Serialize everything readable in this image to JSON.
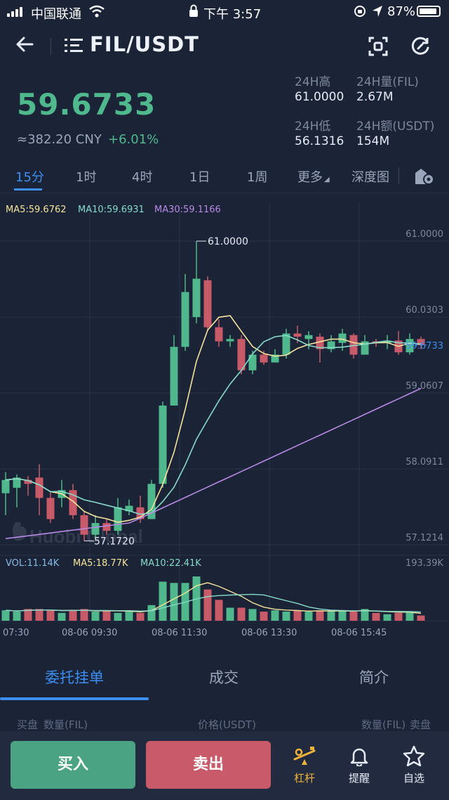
{
  "status_bar": {
    "carrier": "中国联通",
    "time": "下午 3:57",
    "battery": "87%"
  },
  "header": {
    "pair": "FIL/USDT"
  },
  "price": {
    "last": "59.6733",
    "cny": "≈382.20 CNY",
    "change": "+6.01%",
    "stats": [
      {
        "label": "24H高",
        "value": "61.0000"
      },
      {
        "label": "24H量(FIL)",
        "value": "2.67M"
      },
      {
        "label": "24H低",
        "value": "56.1316"
      },
      {
        "label": "24H额(USDT)",
        "value": "154M"
      }
    ]
  },
  "tabs": [
    "15分",
    "1时",
    "4时",
    "1日",
    "1周",
    "更多",
    "深度图"
  ],
  "active_tab": "15分",
  "indicators": {
    "ma5": "MA5:59.6762",
    "ma10": "MA10:59.6931",
    "ma30": "MA30:59.1166",
    "vol": "VOL:11.14K",
    "vol_ma5": "MA5:18.77K",
    "vol_ma10": "MA10:22.41K"
  },
  "chart_data": {
    "type": "candlestick",
    "interval": "15分",
    "y_ticks": [
      "61.0000",
      "60.0303",
      "59.0607",
      "58.0911",
      "57.1214"
    ],
    "y_range": [
      57.1214,
      61.0
    ],
    "volume_max_label": "193.39K",
    "current_price": "59.6733",
    "high_marker": "61.0000",
    "low_marker": "57.1720",
    "x_labels": [
      "07:30",
      "08-06 09:30",
      "08-06 11:30",
      "08-06 13:30",
      "08-06 15:45"
    ],
    "candles": [
      {
        "o": 57.78,
        "c": 57.95,
        "h": 58.05,
        "l": 57.5,
        "v": 8
      },
      {
        "o": 57.85,
        "c": 57.98,
        "h": 58.02,
        "l": 57.6,
        "v": 7
      },
      {
        "o": 57.95,
        "c": 57.9,
        "h": 58.0,
        "l": 57.75,
        "v": 9
      },
      {
        "o": 57.98,
        "c": 57.72,
        "h": 58.15,
        "l": 57.5,
        "v": 9
      },
      {
        "o": 57.72,
        "c": 57.45,
        "h": 57.8,
        "l": 57.4,
        "v": 8
      },
      {
        "o": 57.72,
        "c": 57.82,
        "h": 57.95,
        "l": 57.6,
        "v": 6
      },
      {
        "o": 57.82,
        "c": 57.5,
        "h": 57.9,
        "l": 57.45,
        "v": 8
      },
      {
        "o": 57.5,
        "c": 57.25,
        "h": 57.55,
        "l": 57.17,
        "v": 9
      },
      {
        "o": 57.25,
        "c": 57.4,
        "h": 57.5,
        "l": 57.2,
        "v": 7
      },
      {
        "o": 57.4,
        "c": 57.3,
        "h": 57.45,
        "l": 57.25,
        "v": 8
      },
      {
        "o": 57.3,
        "c": 57.6,
        "h": 57.72,
        "l": 57.25,
        "v": 6
      },
      {
        "o": 57.55,
        "c": 57.62,
        "h": 57.7,
        "l": 57.5,
        "v": 7
      },
      {
        "o": 57.6,
        "c": 57.45,
        "h": 57.75,
        "l": 57.4,
        "v": 6
      },
      {
        "o": 57.45,
        "c": 57.9,
        "h": 57.95,
        "l": 57.45,
        "v": 12
      },
      {
        "o": 57.9,
        "c": 58.9,
        "h": 58.95,
        "l": 57.85,
        "v": 30
      },
      {
        "o": 58.9,
        "c": 59.65,
        "h": 59.8,
        "l": 58.9,
        "v": 29
      },
      {
        "o": 59.65,
        "c": 60.35,
        "h": 60.58,
        "l": 59.6,
        "v": 29
      },
      {
        "o": 60.03,
        "c": 60.52,
        "h": 61.0,
        "l": 59.95,
        "v": 34
      },
      {
        "o": 60.5,
        "c": 59.9,
        "h": 60.55,
        "l": 59.85,
        "v": 24
      },
      {
        "o": 59.9,
        "c": 59.72,
        "h": 60.0,
        "l": 59.65,
        "v": 16
      },
      {
        "o": 59.72,
        "c": 59.75,
        "h": 59.8,
        "l": 59.65,
        "v": 10
      },
      {
        "o": 59.75,
        "c": 59.35,
        "h": 59.8,
        "l": 59.3,
        "v": 10
      },
      {
        "o": 59.35,
        "c": 59.55,
        "h": 59.6,
        "l": 59.3,
        "v": 9
      },
      {
        "o": 59.55,
        "c": 59.45,
        "h": 59.6,
        "l": 59.42,
        "v": 7
      },
      {
        "o": 59.45,
        "c": 59.55,
        "h": 59.62,
        "l": 59.45,
        "v": 8
      },
      {
        "o": 59.55,
        "c": 59.82,
        "h": 59.88,
        "l": 59.5,
        "v": 7
      },
      {
        "o": 59.82,
        "c": 59.78,
        "h": 59.92,
        "l": 59.7,
        "v": 8
      },
      {
        "o": 59.75,
        "c": 59.8,
        "h": 59.85,
        "l": 59.62,
        "v": 7
      },
      {
        "o": 59.78,
        "c": 59.62,
        "h": 59.82,
        "l": 59.45,
        "v": 8
      },
      {
        "o": 59.62,
        "c": 59.72,
        "h": 59.8,
        "l": 59.58,
        "v": 7
      },
      {
        "o": 59.7,
        "c": 59.82,
        "h": 59.88,
        "l": 59.6,
        "v": 8
      },
      {
        "o": 59.8,
        "c": 59.55,
        "h": 59.82,
        "l": 59.5,
        "v": 7
      },
      {
        "o": 59.55,
        "c": 59.72,
        "h": 59.8,
        "l": 59.55,
        "v": 9
      },
      {
        "o": 59.72,
        "c": 59.7,
        "h": 59.75,
        "l": 59.65,
        "v": 6
      },
      {
        "o": 59.7,
        "c": 59.73,
        "h": 59.8,
        "l": 59.62,
        "v": 5
      },
      {
        "o": 59.73,
        "c": 59.58,
        "h": 59.85,
        "l": 59.55,
        "v": 6
      },
      {
        "o": 59.58,
        "c": 59.75,
        "h": 59.82,
        "l": 59.55,
        "v": 7
      },
      {
        "o": 59.75,
        "c": 59.67,
        "h": 59.78,
        "l": 59.62,
        "v": 4
      }
    ],
    "ma30_start": 57.2,
    "ma30_end": 59.12
  },
  "bottom_tabs": [
    "委托挂单",
    "成交",
    "简介"
  ],
  "orderbook_header": {
    "bid": "买盘",
    "qty_left": "数量(FIL)",
    "price": "价格(USDT)",
    "qty_right": "数量(FIL)",
    "ask": "卖盘"
  },
  "actions": {
    "buy": "买入",
    "sell": "卖出",
    "leverage": "杠杆",
    "alert": "提醒",
    "favorite": "自选"
  },
  "colors": {
    "up": "#4fb88c",
    "down": "#c95a69",
    "accent": "#3c8ef0",
    "bg": "#1b2336",
    "ma5": "#f5e49c",
    "ma10": "#86dbc9",
    "ma30": "#b989e6"
  }
}
